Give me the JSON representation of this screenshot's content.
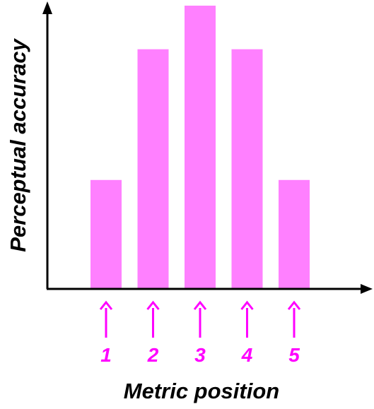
{
  "chart_data": {
    "type": "bar",
    "categories": [
      "1",
      "2",
      "3",
      "4",
      "5"
    ],
    "values": [
      2.5,
      5.5,
      6.5,
      5.5,
      2.5
    ],
    "title": "",
    "xlabel": "Metric position",
    "ylabel": "Perceptual accuracy",
    "ylim": [
      0,
      6.5
    ],
    "grid": false,
    "legend": "none",
    "x_ticks_style": "arrows",
    "bar_color": "#ff80ff",
    "tick_color": "#ff00ff",
    "axis_color": "#000000"
  }
}
